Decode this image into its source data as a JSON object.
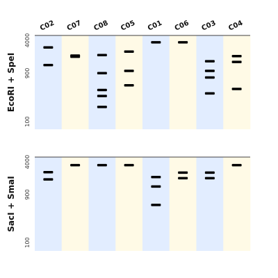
{
  "chart_data": {
    "type": "gel",
    "lanes": [
      "C02",
      "C07",
      "C08",
      "C05",
      "C01",
      "C06",
      "C03",
      "C04"
    ],
    "lane_colors": [
      "#e2edff",
      "#fffae6",
      "#e2edff",
      "#fffae6",
      "#e2edff",
      "#fffae6",
      "#e2edff",
      "#fffae6"
    ],
    "band_color": "#000000",
    "y_scale": "log",
    "panels": [
      {
        "title": "EcoRI + SpeI",
        "ylim": [
          70,
          4000
        ],
        "yticks": [
          4000,
          900,
          100
        ],
        "bands": [
          [
            2900,
            1300
          ],
          [
            2000,
            1900
          ],
          [
            2050,
            900,
            420,
            320,
            195
          ],
          [
            2400,
            1000,
            520
          ],
          [
            3650
          ],
          [
            3650
          ],
          [
            1550,
            1000,
            740,
            360
          ],
          [
            1950,
            1500,
            440
          ]
        ]
      },
      {
        "title": "SacI + SmaI",
        "ylim": [
          70,
          4000
        ],
        "yticks": [
          4000,
          900,
          100
        ],
        "bands": [
          [
            2500,
            1800
          ],
          [
            3450
          ],
          [
            3450
          ],
          [
            3450
          ],
          [
            2000,
            1300,
            560
          ],
          [
            2450,
            1900
          ],
          [
            2450,
            1900
          ],
          [
            3450
          ]
        ]
      }
    ]
  }
}
